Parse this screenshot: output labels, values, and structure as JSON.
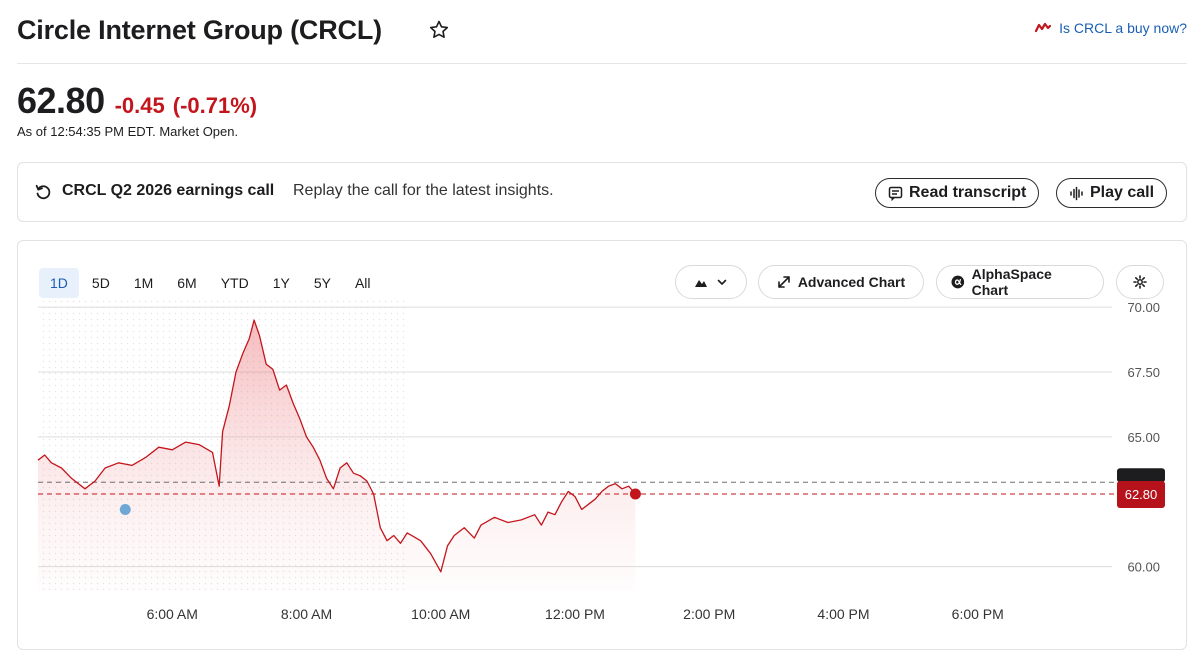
{
  "header": {
    "title": "Circle Internet Group (CRCL)",
    "buy_link": "Is CRCL a buy now?"
  },
  "quote": {
    "price": "62.80",
    "change": "-0.45",
    "change_pct": "(-0.71%)",
    "as_of": "As of 12:54:35 PM EDT. Market Open."
  },
  "earnings": {
    "title": "CRCL Q2 2026 earnings call",
    "subtitle": "Replay the call for the latest insights.",
    "read_label": "Read transcript",
    "play_label": "Play call"
  },
  "ranges": [
    "1D",
    "5D",
    "1M",
    "6M",
    "YTD",
    "1Y",
    "5Y",
    "All"
  ],
  "active_range": "1D",
  "tools": {
    "advanced": "Advanced Chart",
    "alphaspace": "AlphaSpace Chart"
  },
  "colors": {
    "accent": "#1a5fb4",
    "negative": "#c3161c",
    "line": "#c3161c"
  },
  "chart_data": {
    "type": "area",
    "x_unit": "hour",
    "xlim": [
      4,
      20
    ],
    "ylim": [
      59.1,
      70.35
    ],
    "y_ticks": [
      {
        "value": 60,
        "label": "60.00"
      },
      {
        "value": 65,
        "label": "65.00"
      },
      {
        "value": 67.5,
        "label": "67.50"
      },
      {
        "value": 70,
        "label": "70.00"
      }
    ],
    "x_ticks": [
      {
        "value": 6,
        "label": "6:00 AM"
      },
      {
        "value": 8,
        "label": "8:00 AM"
      },
      {
        "value": 10,
        "label": "10:00 AM"
      },
      {
        "value": 12,
        "label": "12:00 PM"
      },
      {
        "value": 14,
        "label": "2:00 PM"
      },
      {
        "value": 16,
        "label": "4:00 PM"
      },
      {
        "value": 18,
        "label": "6:00 PM"
      }
    ],
    "premarket_end": 9.5,
    "previous_close": 63.25,
    "current": {
      "value": 62.8,
      "label": "62.80"
    },
    "marker_point": [
      5.3,
      62.2
    ],
    "series": [
      {
        "values": [
          [
            4.0,
            64.1
          ],
          [
            4.1,
            64.3
          ],
          [
            4.2,
            64.0
          ],
          [
            4.35,
            63.8
          ],
          [
            4.5,
            63.4
          ],
          [
            4.7,
            63.0
          ],
          [
            4.85,
            63.3
          ],
          [
            5.0,
            63.8
          ],
          [
            5.2,
            64.0
          ],
          [
            5.4,
            63.9
          ],
          [
            5.6,
            64.2
          ],
          [
            5.8,
            64.6
          ],
          [
            6.0,
            64.5
          ],
          [
            6.2,
            64.8
          ],
          [
            6.4,
            64.7
          ],
          [
            6.6,
            64.4
          ],
          [
            6.7,
            63.1
          ],
          [
            6.75,
            65.2
          ],
          [
            6.85,
            66.2
          ],
          [
            6.95,
            67.5
          ],
          [
            7.05,
            68.2
          ],
          [
            7.15,
            68.8
          ],
          [
            7.22,
            69.5
          ],
          [
            7.3,
            68.9
          ],
          [
            7.4,
            67.8
          ],
          [
            7.5,
            67.6
          ],
          [
            7.6,
            66.8
          ],
          [
            7.7,
            67.0
          ],
          [
            7.8,
            66.3
          ],
          [
            7.9,
            65.7
          ],
          [
            8.0,
            65.0
          ],
          [
            8.1,
            64.6
          ],
          [
            8.2,
            64.1
          ],
          [
            8.3,
            63.4
          ],
          [
            8.4,
            63.0
          ],
          [
            8.5,
            63.8
          ],
          [
            8.6,
            64.0
          ],
          [
            8.7,
            63.6
          ],
          [
            8.8,
            63.5
          ],
          [
            8.9,
            63.3
          ],
          [
            9.0,
            62.8
          ],
          [
            9.1,
            61.5
          ],
          [
            9.2,
            61.0
          ],
          [
            9.3,
            61.2
          ],
          [
            9.4,
            60.9
          ],
          [
            9.5,
            61.3
          ],
          [
            9.7,
            61.0
          ],
          [
            9.85,
            60.5
          ],
          [
            10.0,
            59.8
          ],
          [
            10.1,
            60.8
          ],
          [
            10.2,
            61.2
          ],
          [
            10.35,
            61.5
          ],
          [
            10.5,
            61.1
          ],
          [
            10.6,
            61.6
          ],
          [
            10.8,
            61.9
          ],
          [
            11.0,
            61.7
          ],
          [
            11.2,
            61.8
          ],
          [
            11.4,
            62.0
          ],
          [
            11.5,
            61.6
          ],
          [
            11.6,
            62.1
          ],
          [
            11.7,
            62.0
          ],
          [
            11.8,
            62.5
          ],
          [
            11.9,
            62.9
          ],
          [
            12.0,
            62.7
          ],
          [
            12.1,
            62.2
          ],
          [
            12.2,
            62.4
          ],
          [
            12.3,
            62.6
          ],
          [
            12.4,
            62.9
          ],
          [
            12.5,
            63.1
          ],
          [
            12.6,
            63.2
          ],
          [
            12.7,
            63.0
          ],
          [
            12.8,
            63.1
          ],
          [
            12.9,
            62.8
          ]
        ]
      }
    ]
  }
}
